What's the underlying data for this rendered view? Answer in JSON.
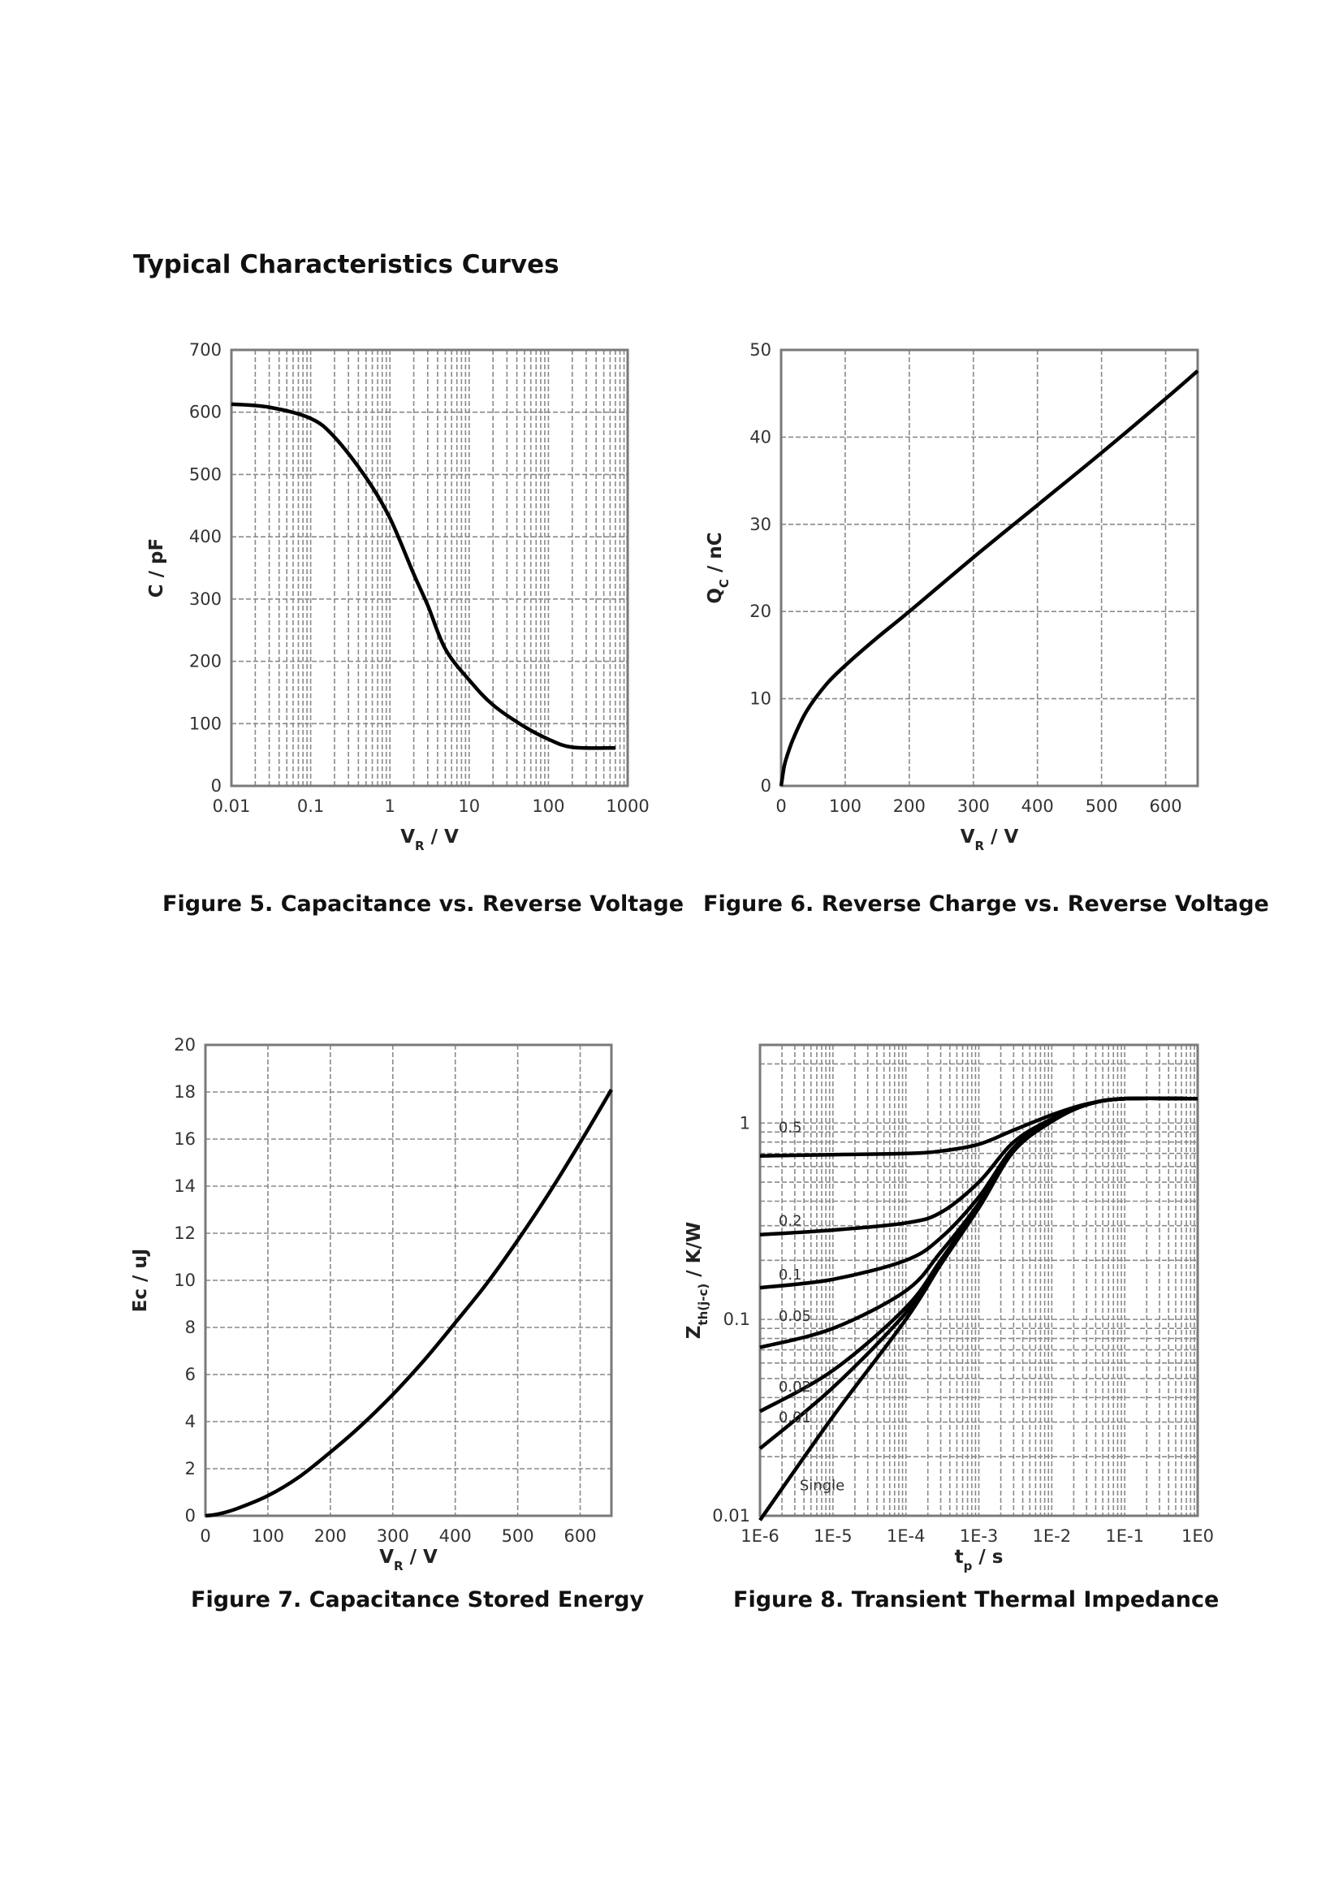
{
  "page": {
    "title": "Typical Characteristics Curves"
  },
  "chart_data": [
    {
      "id": "fig5",
      "type": "line",
      "caption": "Figure 5. Capacitance vs. Reverse Voltage",
      "xscale": "log",
      "xlim": [
        0.01,
        1000
      ],
      "ylim": [
        0,
        700
      ],
      "xticks": [
        0.01,
        0.1,
        1,
        10,
        100,
        1000
      ],
      "xtick_labels": [
        "0.01",
        "0.1",
        "1",
        "10",
        "100",
        "1000"
      ],
      "yticks": [
        0,
        100,
        200,
        300,
        400,
        500,
        600,
        700
      ],
      "ytick_labels": [
        "0",
        "100",
        "200",
        "300",
        "400",
        "500",
        "600",
        "700"
      ],
      "xlabel": {
        "main": "V",
        "sub": "R",
        "rest": " / V"
      },
      "ylabel": {
        "main": "C / pF",
        "sub": "",
        "rest": ""
      },
      "grid": true,
      "series": [
        {
          "name": "C",
          "x": [
            0.01,
            0.03,
            0.1,
            0.2,
            0.5,
            1,
            2,
            3,
            5,
            10,
            20,
            50,
            100,
            200,
            700
          ],
          "y": [
            613,
            608,
            590,
            560,
            495,
            430,
            340,
            290,
            220,
            170,
            130,
            95,
            75,
            62,
            61
          ]
        }
      ]
    },
    {
      "id": "fig6",
      "type": "line",
      "caption": "Figure 6. Reverse Charge vs. Reverse Voltage",
      "xscale": "linear",
      "xlim": [
        0,
        650
      ],
      "ylim": [
        0,
        50
      ],
      "xticks": [
        0,
        100,
        200,
        300,
        400,
        500,
        600
      ],
      "xtick_labels": [
        "0",
        "100",
        "200",
        "300",
        "400",
        "500",
        "600"
      ],
      "yticks": [
        0,
        10,
        20,
        30,
        40,
        50
      ],
      "ytick_labels": [
        "0",
        "10",
        "20",
        "30",
        "40",
        "50"
      ],
      "xlabel": {
        "main": "V",
        "sub": "R",
        "rest": " / V"
      },
      "ylabel": {
        "main": "Q",
        "sub": "C",
        "rest": " / nC"
      },
      "grid": true,
      "series": [
        {
          "name": "Qc",
          "x": [
            0,
            5,
            10,
            20,
            40,
            70,
            100,
            150,
            200,
            300,
            400,
            500,
            600,
            650
          ],
          "y": [
            0,
            2.3,
            3.6,
            5.6,
            8.6,
            11.6,
            13.8,
            17.0,
            20.0,
            26.2,
            32.2,
            38.2,
            44.4,
            47.6
          ]
        }
      ]
    },
    {
      "id": "fig7",
      "type": "line",
      "caption": "Figure 7. Capacitance Stored Energy",
      "xscale": "linear",
      "xlim": [
        0,
        650
      ],
      "ylim": [
        0,
        20
      ],
      "xticks": [
        0,
        100,
        200,
        300,
        400,
        500,
        600
      ],
      "xtick_labels": [
        "0",
        "100",
        "200",
        "300",
        "400",
        "500",
        "600"
      ],
      "yticks": [
        0,
        2,
        4,
        6,
        8,
        10,
        12,
        14,
        16,
        18,
        20
      ],
      "ytick_labels": [
        "0",
        "2",
        "4",
        "6",
        "8",
        "10",
        "12",
        "14",
        "16",
        "18",
        "20"
      ],
      "xlabel": {
        "main": "V",
        "sub": "R",
        "rest": " / V"
      },
      "ylabel": {
        "main": "Ec / uJ",
        "sub": "",
        "rest": ""
      },
      "grid": true,
      "series": [
        {
          "name": "Ec",
          "x": [
            0,
            20,
            50,
            100,
            150,
            200,
            250,
            300,
            350,
            400,
            450,
            500,
            550,
            600,
            650
          ],
          "y": [
            0,
            0.07,
            0.3,
            0.85,
            1.65,
            2.7,
            3.85,
            5.15,
            6.6,
            8.2,
            9.85,
            11.7,
            13.7,
            15.85,
            18.1
          ]
        }
      ]
    },
    {
      "id": "fig8",
      "type": "line",
      "caption": "Figure 8. Transient Thermal Impedance",
      "xscale": "log",
      "yscale": "log",
      "xlim": [
        1e-06,
        1
      ],
      "ylim": [
        0.01,
        2.5
      ],
      "xticks": [
        1e-06,
        1e-05,
        0.0001,
        0.001,
        0.01,
        0.1,
        1
      ],
      "xtick_labels": [
        "1E-6",
        "1E-5",
        "1E-4",
        "1E-3",
        "1E-2",
        "1E-1",
        "1E0"
      ],
      "yticks": [
        0.01,
        0.1,
        1
      ],
      "ytick_labels": [
        "0.01",
        "0.1",
        "1"
      ],
      "xlabel": {
        "main": "t",
        "sub": "p",
        "rest": " / s"
      },
      "ylabel": {
        "main": "Z",
        "sub": "th(j-c)",
        "rest": " / K/W"
      },
      "grid": true,
      "series": [
        {
          "name": "0.5",
          "label_at": [
            1.8e-06,
            0.9
          ],
          "x": [
            1e-06,
            1e-05,
            0.0001,
            0.0003,
            0.001,
            0.003,
            0.01,
            0.03,
            0.1,
            1
          ],
          "y": [
            0.68,
            0.69,
            0.7,
            0.72,
            0.78,
            0.92,
            1.1,
            1.25,
            1.33,
            1.33
          ]
        },
        {
          "name": "0.2",
          "label_at": [
            1.8e-06,
            0.3
          ],
          "x": [
            1e-06,
            1e-05,
            0.0001,
            0.0003,
            0.001,
            0.003,
            0.01,
            0.03,
            0.1,
            1
          ],
          "y": [
            0.27,
            0.285,
            0.31,
            0.35,
            0.5,
            0.8,
            1.05,
            1.24,
            1.33,
            1.33
          ]
        },
        {
          "name": "0.1",
          "label_at": [
            1.8e-06,
            0.16
          ],
          "x": [
            1e-06,
            1e-05,
            0.0001,
            0.0003,
            0.001,
            0.003,
            0.01,
            0.03,
            0.1,
            1
          ],
          "y": [
            0.145,
            0.16,
            0.2,
            0.26,
            0.42,
            0.75,
            1.03,
            1.24,
            1.33,
            1.33
          ]
        },
        {
          "name": "0.05",
          "label_at": [
            1.8e-06,
            0.098
          ],
          "x": [
            1e-06,
            1e-05,
            0.0001,
            0.0003,
            0.001,
            0.003,
            0.01,
            0.03,
            0.1,
            1
          ],
          "y": [
            0.072,
            0.09,
            0.14,
            0.22,
            0.39,
            0.73,
            1.02,
            1.24,
            1.33,
            1.33
          ]
        },
        {
          "name": "0.02",
          "label_at": [
            1.8e-06,
            0.043
          ],
          "x": [
            1e-06,
            1e-05,
            0.0001,
            0.0003,
            0.001,
            0.003,
            0.01,
            0.03,
            0.1,
            1
          ],
          "y": [
            0.034,
            0.055,
            0.115,
            0.2,
            0.38,
            0.72,
            1.02,
            1.24,
            1.33,
            1.33
          ]
        },
        {
          "name": "0.01",
          "label_at": [
            1.8e-06,
            0.03
          ],
          "x": [
            1e-06,
            1e-05,
            0.0001,
            0.0003,
            0.001,
            0.003,
            0.01,
            0.03,
            0.1,
            1
          ],
          "y": [
            0.022,
            0.045,
            0.108,
            0.195,
            0.37,
            0.72,
            1.02,
            1.24,
            1.33,
            1.33
          ]
        },
        {
          "name": "Single",
          "label_at": [
            3.5e-06,
            0.0135
          ],
          "x": [
            1e-06,
            1e-05,
            0.0001,
            0.0003,
            0.001,
            0.003,
            0.01,
            0.03,
            0.1,
            1
          ],
          "y": [
            0.0095,
            0.032,
            0.1,
            0.19,
            0.37,
            0.72,
            1.02,
            1.24,
            1.33,
            1.33
          ]
        }
      ]
    }
  ]
}
